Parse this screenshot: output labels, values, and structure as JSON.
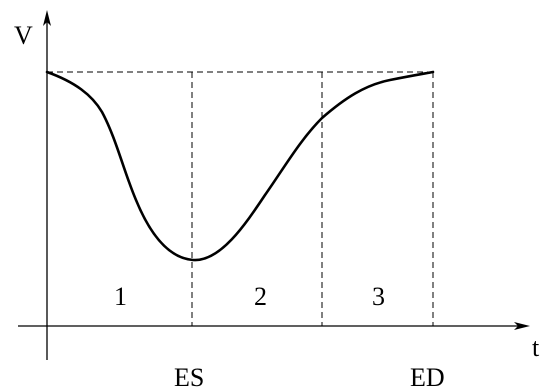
{
  "axes": {
    "y_label": "V",
    "x_label": "t"
  },
  "phases": [
    {
      "label": "1"
    },
    {
      "label": "2"
    },
    {
      "label": "3"
    }
  ],
  "markers": {
    "es": "ES",
    "ed": "ED"
  },
  "colors": {
    "ink": "#000000"
  }
}
